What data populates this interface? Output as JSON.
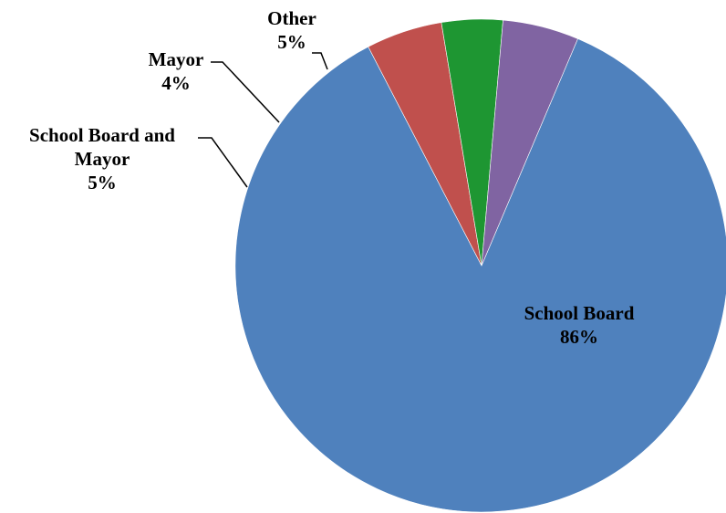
{
  "chart_data": {
    "type": "pie",
    "title": "",
    "slices": [
      {
        "label": "School Board",
        "lines": [
          "School Board"
        ],
        "value": 86,
        "pct_label": "86%",
        "color": "#4F81BD"
      },
      {
        "label": "School Board and Mayor",
        "lines": [
          "School Board and",
          "Mayor"
        ],
        "value": 5,
        "pct_label": "5%",
        "color": "#C0504D"
      },
      {
        "label": "Mayor",
        "lines": [
          "Mayor"
        ],
        "value": 4,
        "pct_label": "4%",
        "color": "#1E9632"
      },
      {
        "label": "Other",
        "lines": [
          "Other"
        ],
        "value": 5,
        "pct_label": "5%",
        "color": "#8064A2"
      }
    ]
  }
}
